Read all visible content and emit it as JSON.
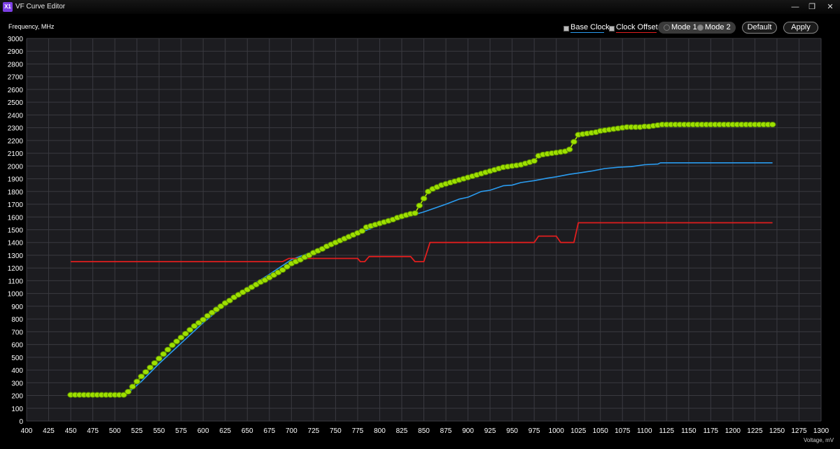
{
  "window": {
    "title": "VF Curve Editor",
    "icon_label": "X1",
    "minimize_icon": "minimize-icon",
    "restore_icon": "restore-icon",
    "close_icon": "close-icon"
  },
  "controls": {
    "legend_base": "Base Clock",
    "legend_offset": "Clock Offset",
    "mode1": "Mode 1",
    "mode2": "Mode 2",
    "default": "Default",
    "apply": "Apply"
  },
  "colors": {
    "background": "#000000",
    "plot_bg": "#1c1c20",
    "grid": "#3a3a40",
    "base": "#2a9cf0",
    "offset": "#e01e1e",
    "curve": "#b8f000",
    "point_fill": "#9ee000",
    "point_stroke": "#5a8a00"
  },
  "chart_data": {
    "type": "line",
    "xlabel": "Voltage, mV",
    "ylabel": "Frequency, MHz",
    "xlim": [
      400,
      1300
    ],
    "ylim": [
      0,
      3000
    ],
    "xticks": [
      400,
      425,
      450,
      475,
      500,
      525,
      550,
      575,
      600,
      625,
      650,
      675,
      700,
      725,
      750,
      775,
      800,
      825,
      850,
      875,
      900,
      925,
      950,
      975,
      1000,
      1025,
      1050,
      1075,
      1100,
      1125,
      1150,
      1175,
      1200,
      1225,
      1250,
      1275,
      1300
    ],
    "yticks": [
      0,
      100,
      200,
      300,
      400,
      500,
      600,
      700,
      800,
      900,
      1000,
      1100,
      1200,
      1300,
      1400,
      1500,
      1600,
      1700,
      1800,
      1900,
      2000,
      2100,
      2200,
      2300,
      2400,
      2500,
      2600,
      2700,
      2800,
      2900,
      3000
    ],
    "grid": true,
    "legend": "top-right",
    "series": [
      {
        "name": "Base Clock",
        "points": [
          [
            450,
            205
          ],
          [
            512,
            205
          ],
          [
            530,
            310
          ],
          [
            550,
            450
          ],
          [
            575,
            610
          ],
          [
            600,
            770
          ],
          [
            625,
            915
          ],
          [
            650,
            1045
          ],
          [
            675,
            1150
          ],
          [
            700,
            1265
          ],
          [
            725,
            1330
          ],
          [
            750,
            1410
          ],
          [
            775,
            1470
          ],
          [
            790,
            1510
          ],
          [
            800,
            1540
          ],
          [
            825,
            1590
          ],
          [
            850,
            1640
          ],
          [
            875,
            1700
          ],
          [
            890,
            1740
          ],
          [
            900,
            1755
          ],
          [
            915,
            1800
          ],
          [
            925,
            1810
          ],
          [
            940,
            1845
          ],
          [
            950,
            1850
          ],
          [
            960,
            1870
          ],
          [
            975,
            1885
          ],
          [
            990,
            1905
          ],
          [
            1000,
            1915
          ],
          [
            1015,
            1935
          ],
          [
            1025,
            1945
          ],
          [
            1040,
            1960
          ],
          [
            1055,
            1980
          ],
          [
            1070,
            1990
          ],
          [
            1085,
            1995
          ],
          [
            1100,
            2010
          ],
          [
            1115,
            2015
          ],
          [
            1118,
            2025
          ],
          [
            1245,
            2025
          ]
        ]
      },
      {
        "name": "Clock Offset",
        "points": [
          [
            450,
            1250
          ],
          [
            690,
            1250
          ],
          [
            697,
            1275
          ],
          [
            775,
            1275
          ],
          [
            778,
            1250
          ],
          [
            783,
            1250
          ],
          [
            788,
            1290
          ],
          [
            835,
            1290
          ],
          [
            840,
            1250
          ],
          [
            850,
            1250
          ],
          [
            857,
            1400
          ],
          [
            975,
            1400
          ],
          [
            980,
            1450
          ],
          [
            1000,
            1450
          ],
          [
            1005,
            1400
          ],
          [
            1020,
            1400
          ],
          [
            1025,
            1555
          ],
          [
            1245,
            1555
          ]
        ]
      },
      {
        "name": "",
        "points": [
          [
            450,
            205
          ],
          [
            455,
            205
          ],
          [
            460,
            205
          ],
          [
            465,
            205
          ],
          [
            470,
            205
          ],
          [
            475,
            205
          ],
          [
            480,
            205
          ],
          [
            485,
            205
          ],
          [
            490,
            205
          ],
          [
            495,
            205
          ],
          [
            500,
            205
          ],
          [
            505,
            205
          ],
          [
            510,
            205
          ],
          [
            515,
            230
          ],
          [
            520,
            270
          ],
          [
            525,
            310
          ],
          [
            530,
            350
          ],
          [
            535,
            385
          ],
          [
            540,
            420
          ],
          [
            545,
            455
          ],
          [
            550,
            490
          ],
          [
            555,
            525
          ],
          [
            560,
            560
          ],
          [
            565,
            595
          ],
          [
            570,
            625
          ],
          [
            575,
            655
          ],
          [
            580,
            685
          ],
          [
            585,
            715
          ],
          [
            590,
            745
          ],
          [
            595,
            770
          ],
          [
            600,
            795
          ],
          [
            605,
            825
          ],
          [
            610,
            850
          ],
          [
            615,
            875
          ],
          [
            620,
            900
          ],
          [
            625,
            925
          ],
          [
            630,
            945
          ],
          [
            635,
            970
          ],
          [
            640,
            990
          ],
          [
            645,
            1010
          ],
          [
            650,
            1030
          ],
          [
            655,
            1050
          ],
          [
            660,
            1070
          ],
          [
            665,
            1090
          ],
          [
            670,
            1105
          ],
          [
            675,
            1125
          ],
          [
            680,
            1145
          ],
          [
            685,
            1165
          ],
          [
            690,
            1185
          ],
          [
            695,
            1210
          ],
          [
            700,
            1235
          ],
          [
            705,
            1250
          ],
          [
            710,
            1265
          ],
          [
            715,
            1285
          ],
          [
            720,
            1300
          ],
          [
            725,
            1320
          ],
          [
            730,
            1335
          ],
          [
            735,
            1350
          ],
          [
            740,
            1370
          ],
          [
            745,
            1385
          ],
          [
            750,
            1400
          ],
          [
            755,
            1415
          ],
          [
            760,
            1430
          ],
          [
            765,
            1445
          ],
          [
            770,
            1460
          ],
          [
            775,
            1475
          ],
          [
            780,
            1490
          ],
          [
            785,
            1520
          ],
          [
            790,
            1530
          ],
          [
            795,
            1540
          ],
          [
            800,
            1550
          ],
          [
            805,
            1560
          ],
          [
            810,
            1570
          ],
          [
            815,
            1580
          ],
          [
            820,
            1595
          ],
          [
            825,
            1605
          ],
          [
            830,
            1615
          ],
          [
            835,
            1625
          ],
          [
            840,
            1630
          ],
          [
            845,
            1690
          ],
          [
            850,
            1745
          ],
          [
            855,
            1800
          ],
          [
            860,
            1820
          ],
          [
            865,
            1835
          ],
          [
            870,
            1850
          ],
          [
            875,
            1860
          ],
          [
            880,
            1870
          ],
          [
            885,
            1880
          ],
          [
            890,
            1890
          ],
          [
            895,
            1900
          ],
          [
            900,
            1910
          ],
          [
            905,
            1920
          ],
          [
            910,
            1930
          ],
          [
            915,
            1940
          ],
          [
            920,
            1950
          ],
          [
            925,
            1960
          ],
          [
            930,
            1970
          ],
          [
            935,
            1980
          ],
          [
            940,
            1990
          ],
          [
            945,
            1995
          ],
          [
            950,
            2000
          ],
          [
            955,
            2005
          ],
          [
            960,
            2010
          ],
          [
            965,
            2020
          ],
          [
            970,
            2030
          ],
          [
            975,
            2040
          ],
          [
            980,
            2080
          ],
          [
            985,
            2090
          ],
          [
            990,
            2095
          ],
          [
            995,
            2100
          ],
          [
            1000,
            2105
          ],
          [
            1005,
            2110
          ],
          [
            1010,
            2115
          ],
          [
            1015,
            2130
          ],
          [
            1020,
            2190
          ],
          [
            1025,
            2245
          ],
          [
            1030,
            2250
          ],
          [
            1035,
            2255
          ],
          [
            1040,
            2260
          ],
          [
            1045,
            2265
          ],
          [
            1050,
            2275
          ],
          [
            1055,
            2280
          ],
          [
            1060,
            2285
          ],
          [
            1065,
            2290
          ],
          [
            1070,
            2295
          ],
          [
            1075,
            2300
          ],
          [
            1080,
            2305
          ],
          [
            1085,
            2305
          ],
          [
            1090,
            2305
          ],
          [
            1095,
            2305
          ],
          [
            1100,
            2310
          ],
          [
            1105,
            2310
          ],
          [
            1110,
            2315
          ],
          [
            1115,
            2320
          ],
          [
            1120,
            2325
          ],
          [
            1125,
            2325
          ],
          [
            1130,
            2325
          ],
          [
            1135,
            2325
          ],
          [
            1140,
            2325
          ],
          [
            1145,
            2325
          ],
          [
            1150,
            2325
          ],
          [
            1155,
            2325
          ],
          [
            1160,
            2325
          ],
          [
            1165,
            2325
          ],
          [
            1170,
            2325
          ],
          [
            1175,
            2325
          ],
          [
            1180,
            2325
          ],
          [
            1185,
            2325
          ],
          [
            1190,
            2325
          ],
          [
            1195,
            2325
          ],
          [
            1200,
            2325
          ],
          [
            1205,
            2325
          ],
          [
            1210,
            2325
          ],
          [
            1215,
            2325
          ],
          [
            1220,
            2325
          ],
          [
            1225,
            2325
          ],
          [
            1230,
            2325
          ],
          [
            1235,
            2325
          ],
          [
            1240,
            2325
          ],
          [
            1245,
            2325
          ]
        ]
      }
    ]
  }
}
